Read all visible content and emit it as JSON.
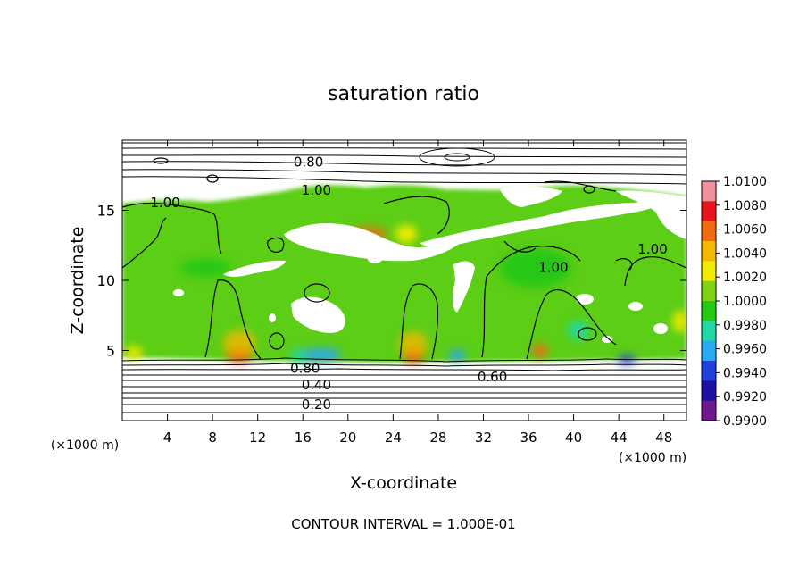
{
  "chart_data": {
    "type": "heatmap",
    "title": "saturation ratio",
    "xlabel": "X-coordinate",
    "ylabel": "Z-coordinate",
    "x_unit_label": "(×1000 m)",
    "y_unit_label": "(×1000 m)",
    "xlim": [
      0,
      50
    ],
    "ylim": [
      0,
      20
    ],
    "x_ticks": [
      4,
      8,
      12,
      16,
      20,
      24,
      28,
      32,
      36,
      40,
      44,
      48
    ],
    "y_ticks": [
      5,
      10,
      15
    ],
    "footnote": "CONTOUR INTERVAL = 1.000E-01",
    "colorbar": {
      "levels": [
        "1.0100",
        "1.0080",
        "1.0060",
        "1.0040",
        "1.0020",
        "1.0000",
        "0.9980",
        "0.9960",
        "0.9940",
        "0.9920",
        "0.9900"
      ],
      "colors": [
        "#f0909a",
        "#e8141e",
        "#f06a14",
        "#f5b800",
        "#f2ea00",
        "#82d214",
        "#26c816",
        "#22d8a0",
        "#2aa8f0",
        "#2040d8",
        "#1e10a0",
        "#701690"
      ]
    },
    "contour_labels": [
      {
        "text": "0.80",
        "x": 16.5,
        "z": 18.5
      },
      {
        "text": "1.00",
        "x": 17.2,
        "z": 16.5
      },
      {
        "text": "1.00",
        "x": 3.8,
        "z": 15.6
      },
      {
        "text": "1.00",
        "x": 38.2,
        "z": 11.0
      },
      {
        "text": "1.00",
        "x": 47.0,
        "z": 12.3
      },
      {
        "text": "0.80",
        "x": 16.2,
        "z": 3.8
      },
      {
        "text": "0.60",
        "x": 32.8,
        "z": 3.2
      },
      {
        "text": "0.40",
        "x": 17.2,
        "z": 2.6
      },
      {
        "text": "0.20",
        "x": 17.2,
        "z": 1.2
      }
    ]
  }
}
